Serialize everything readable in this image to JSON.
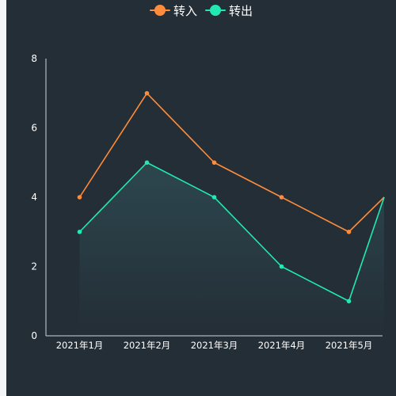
{
  "chart_data": {
    "type": "line",
    "categories": [
      "2021年1月",
      "2021年2月",
      "2021年3月",
      "2021年4月",
      "2021年5月",
      ""
    ],
    "series": [
      {
        "name": "转入",
        "values": [
          4,
          7,
          5,
          4,
          3,
          4
        ],
        "color": "#ff8c3a"
      },
      {
        "name": "转出",
        "values": [
          3,
          5,
          4,
          2,
          1,
          4
        ],
        "color": "#22e8b2",
        "area": true
      }
    ],
    "ylim": [
      0,
      8
    ],
    "yticks": [
      "0",
      "2",
      "4",
      "6",
      "8"
    ],
    "legend_position": "top-center",
    "grid": false
  }
}
